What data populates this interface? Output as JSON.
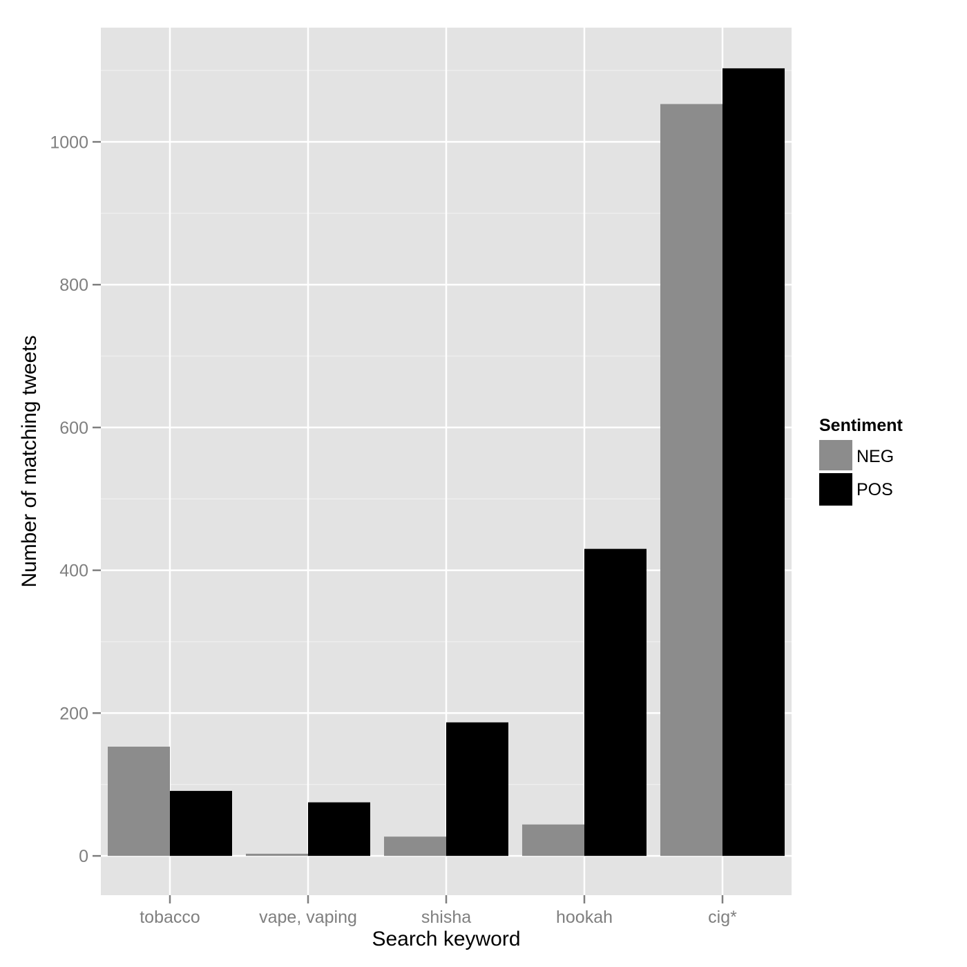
{
  "chart_data": {
    "type": "bar",
    "title": "",
    "xlabel": "Search keyword",
    "ylabel": "Number of matching tweets",
    "categories": [
      "tobacco",
      "vape, vaping",
      "shisha",
      "hookah",
      "cig*"
    ],
    "series": [
      {
        "name": "NEG",
        "values": [
          153,
          3,
          27,
          44,
          1053
        ],
        "color": "#8c8c8c"
      },
      {
        "name": "POS",
        "values": [
          91,
          75,
          187,
          430,
          1103
        ],
        "color": "#000000"
      }
    ],
    "ylim": [
      -55,
      1160
    ],
    "yticks": [
      0,
      200,
      400,
      600,
      800,
      1000
    ],
    "ytick_labels": [
      "0",
      "200",
      "400",
      "600",
      "800",
      "1000"
    ],
    "grid": true,
    "legend": {
      "title": "Sentiment",
      "position": "right"
    },
    "colors": {
      "panel_background": "#e3e3e3",
      "grid_major": "#ffffff",
      "grid_minor": "#f0f0f0",
      "tick_text": "#7f7f7f"
    }
  }
}
